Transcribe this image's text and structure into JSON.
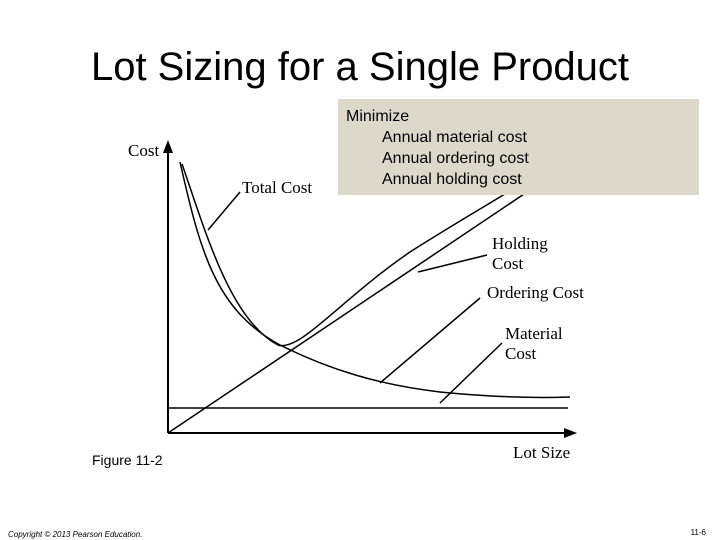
{
  "slide": {
    "title": "Lot Sizing for a Single Product",
    "callout": {
      "heading": "Minimize",
      "items": [
        "Annual material cost",
        "Annual ordering cost",
        "Annual holding cost"
      ]
    },
    "figure_caption": "Figure 11-2",
    "copyright": "Copyright © 2013 Pearson Education.",
    "page_number": "11-6"
  },
  "diagram": {
    "y_axis_label": "Cost",
    "x_axis_label": "Lot Size",
    "curves": {
      "total": "Total Cost",
      "holding_line1": "Holding",
      "holding_line2": "Cost",
      "ordering": "Ordering Cost",
      "material_line1": "Material",
      "material_line2": "Cost"
    }
  }
}
